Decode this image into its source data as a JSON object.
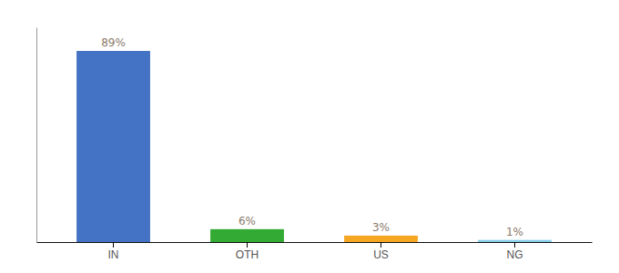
{
  "chart_data": {
    "type": "bar",
    "categories": [
      "IN",
      "OTH",
      "US",
      "NG"
    ],
    "values": [
      89,
      6,
      3,
      1
    ],
    "value_labels": [
      "89%",
      "6%",
      "3%",
      "1%"
    ],
    "colors": [
      "#4472c4",
      "#33aa33",
      "#f5a623",
      "#87ceeb"
    ],
    "ylim": [
      0,
      100
    ],
    "data_labels": true,
    "tick_labels": "x",
    "grid": false
  }
}
